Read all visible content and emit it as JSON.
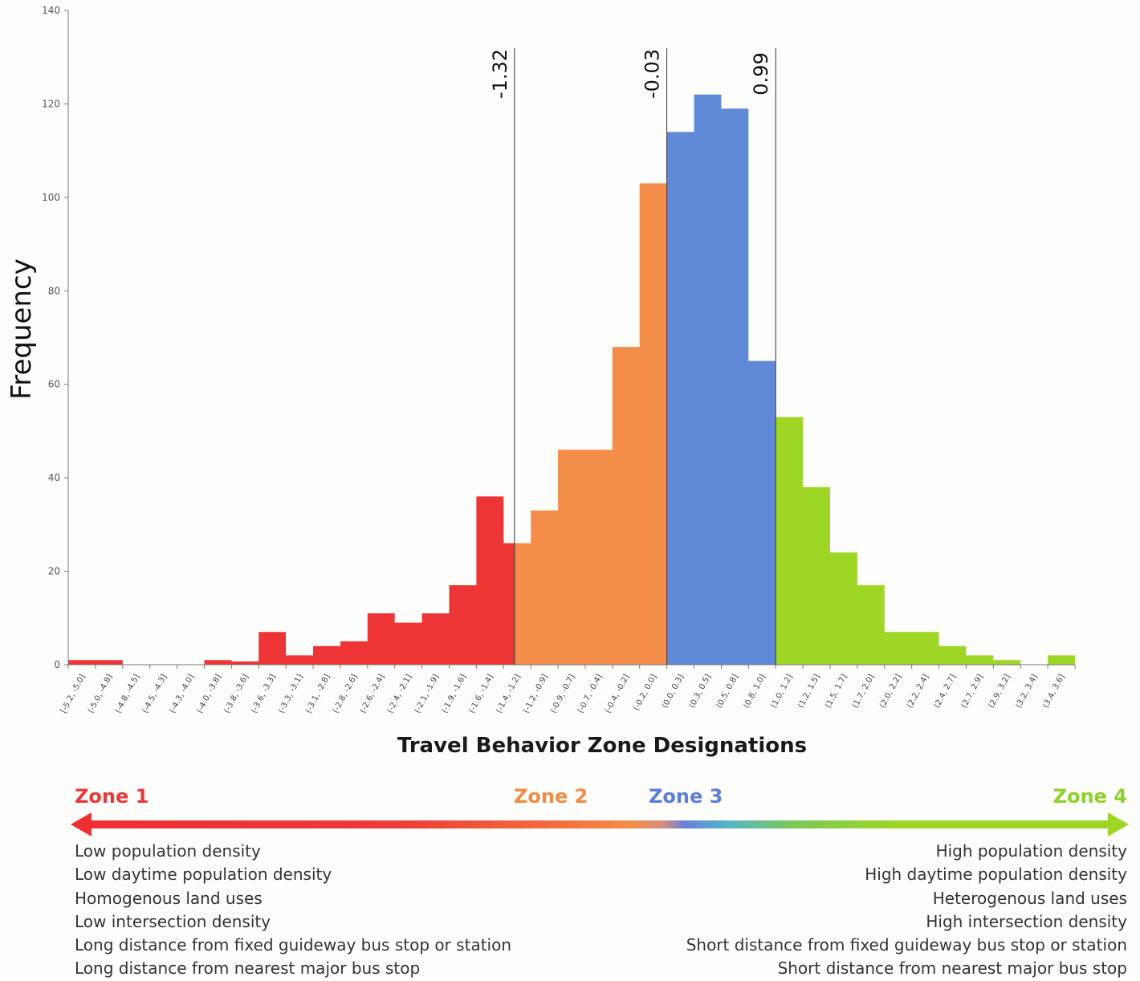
{
  "chart_data": {
    "type": "bar",
    "title": "",
    "xlabel": "Travel Behavior Zone Designations",
    "ylabel": "Frequency",
    "ylim": [
      0,
      140
    ],
    "yticks": [
      0,
      20,
      40,
      60,
      80,
      100,
      120,
      140
    ],
    "grid": false,
    "categories": [
      "[-5.2, -5.0]",
      "(-5.0, -4.8]",
      "(-4.8, -4.5]",
      "(-4.5, -4.3]",
      "(-4.3, -4.0]",
      "(-4.0, -3.8]",
      "(-3.8, -3.6]",
      "(-3.6, -3.3]",
      "(-3.3, -3.1]",
      "(-3.1, -2.8]",
      "(-2.8, -2.6]",
      "(-2.6, -2.4]",
      "(-2.4, -2.1]",
      "(-2.1, -1.9]",
      "(-1.9, -1.6]",
      "(-1.6, -1.4]",
      "(-1.4, -1.2]",
      "(-1.2, -0.9]",
      "(-0.9, -0.7]",
      "(-0.7, -0.4]",
      "(-0.4, -0.2]",
      "(-0.2, 0.0]",
      "(0.0, 0.3]",
      "(0.3, 0.5]",
      "(0.5, 0.8]",
      "(0.8, 1.0]",
      "(1.0, 1.2]",
      "(1.2, 1.5]",
      "(1.5, 1.7]",
      "(1.7, 2.0]",
      "(2.0, 2.2]",
      "(2.2, 2.4]",
      "(2.4, 2.7]",
      "(2.7, 2.9]",
      "(2.9, 3.2]",
      "(3.2, 3.4]",
      "(3.4, 3.6]"
    ],
    "values": [
      1,
      1,
      0,
      0,
      0,
      1,
      0.7,
      7,
      2,
      4,
      5,
      11,
      9,
      11,
      17,
      36,
      26,
      33,
      46,
      46,
      68,
      103,
      114,
      122,
      119,
      65,
      53,
      38,
      24,
      17,
      7,
      7,
      4,
      2,
      1,
      0,
      2
    ],
    "thresholds": [
      {
        "value": -1.32,
        "label": "-1.32"
      },
      {
        "value": -0.03,
        "label": "-0.03"
      },
      {
        "value": 0.99,
        "label": "0.99"
      }
    ],
    "zone_colors": [
      "#ee3535",
      "#f58d4a",
      "#6089d8",
      "#9ed626"
    ],
    "segments": [
      {
        "zone": 0,
        "from_bin": 0,
        "to_bin": 15,
        "split_bin": 16,
        "split_fraction": 0.4
      },
      {
        "zone": 1,
        "from_bin": 16,
        "to_bin": 21,
        "split_bin": null,
        "split_fraction": 0
      },
      {
        "zone": 2,
        "from_bin": 22,
        "to_bin": 25,
        "split_bin": null,
        "split_fraction": 0
      },
      {
        "zone": 3,
        "from_bin": 26,
        "to_bin": 36,
        "split_bin": null,
        "split_fraction": 0
      }
    ]
  },
  "legend": {
    "zone1": "Zone 1",
    "zone2": "Zone 2",
    "zone3": "Zone 3",
    "zone4": "Zone 4",
    "zone1_color": "#e63b3b",
    "zone2_color": "#f08c45",
    "zone3_color": "#5b7fd6",
    "zone4_color": "#8fcf2a",
    "left_items": [
      "Low population density",
      "Low daytime population density",
      "Homogenous land uses",
      "Low intersection density",
      "Long distance from fixed guideway bus stop or station",
      "Long distance from nearest major bus stop"
    ],
    "right_items": [
      "High population density",
      "High daytime population density",
      "Heterogenous land uses",
      "High intersection density",
      "Short distance from fixed guideway bus stop or station",
      "Short distance from nearest major bus stop"
    ]
  }
}
